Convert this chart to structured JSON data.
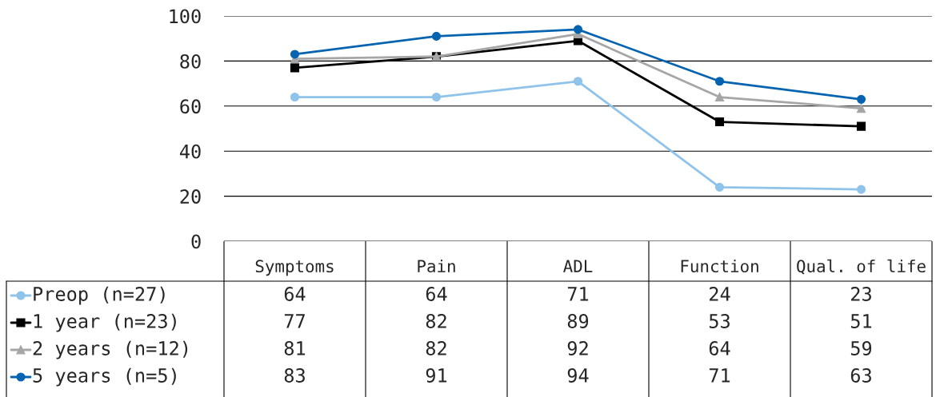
{
  "chart_data": {
    "type": "line",
    "categories": [
      "Symptoms",
      "Pain",
      "ADL",
      "Function",
      "Qual. of life"
    ],
    "series": [
      {
        "name": "Preop (n=27)",
        "color": "#8fc3ea",
        "marker": "circle",
        "values": [
          64,
          64,
          71,
          24,
          23
        ]
      },
      {
        "name": "1 year (n=23)",
        "color": "#000000",
        "marker": "square",
        "values": [
          77,
          82,
          89,
          53,
          51
        ]
      },
      {
        "name": "2 years (n=12)",
        "color": "#a6a6a6",
        "marker": "triangle",
        "values": [
          81,
          82,
          92,
          64,
          59
        ]
      },
      {
        "name": "5 years (n=5)",
        "color": "#0563b0",
        "marker": "circle",
        "values": [
          83,
          91,
          94,
          71,
          63
        ]
      }
    ],
    "ylim": [
      0,
      100
    ],
    "yticks": [
      0,
      20,
      40,
      60,
      80,
      100
    ],
    "grid": "y",
    "legend": "bottom",
    "data_labels": true,
    "line_style": "solid"
  }
}
